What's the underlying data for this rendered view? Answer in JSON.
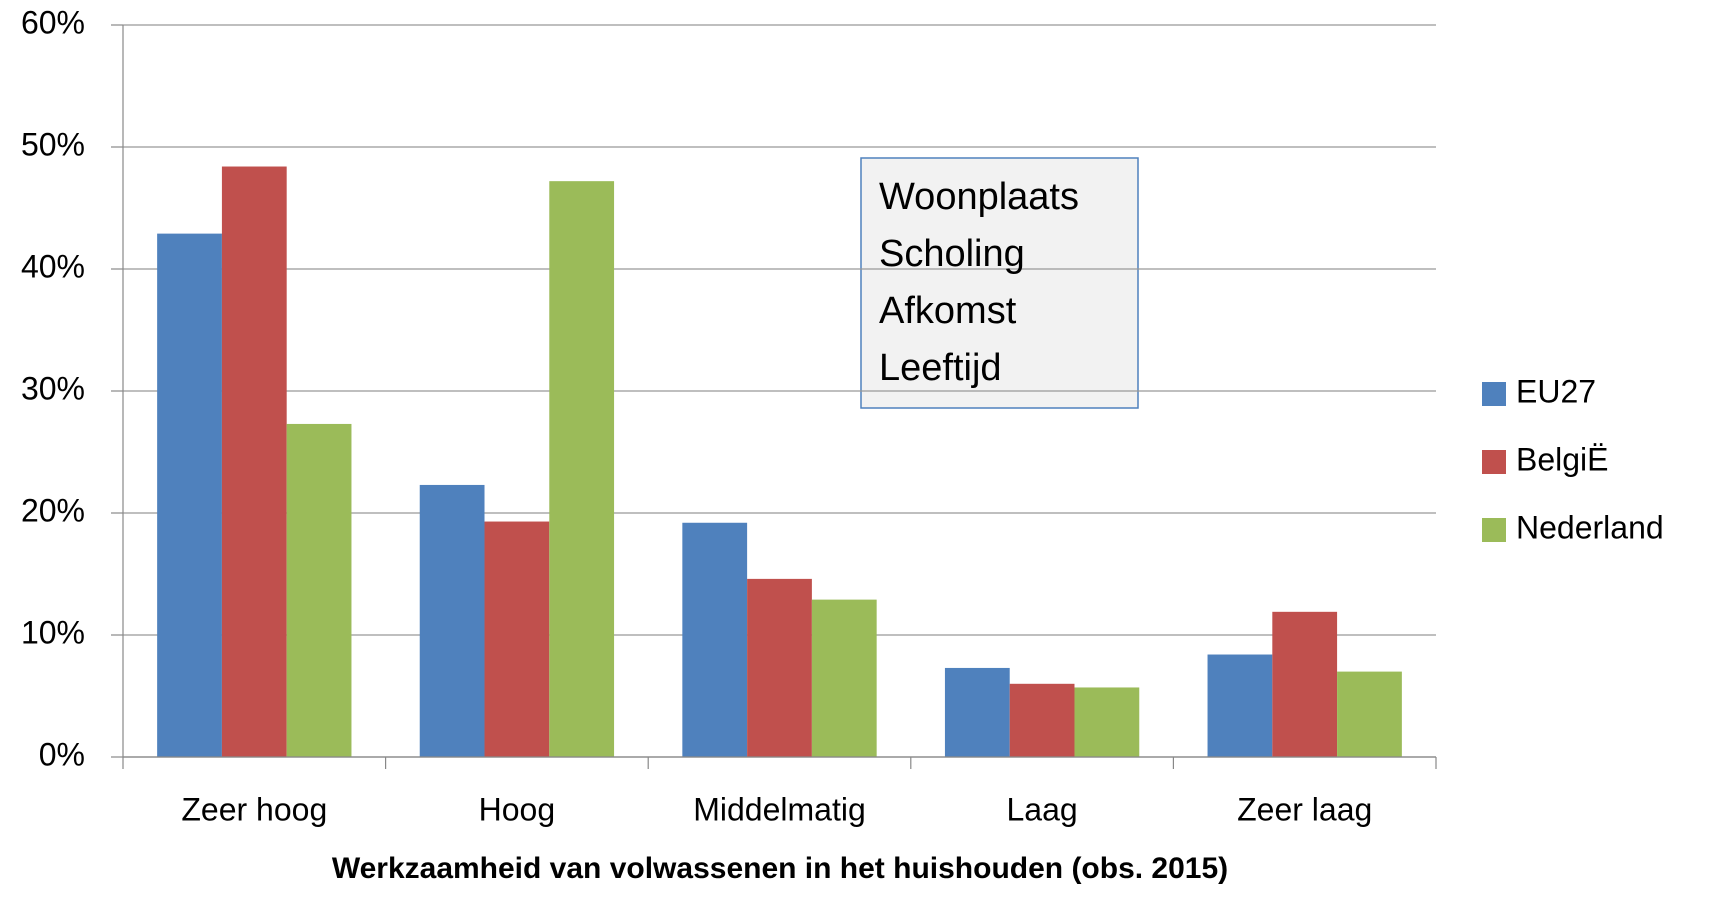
{
  "chart_data": {
    "type": "bar",
    "x_label": "Werkzaamheid van volwassenen in het huishouden (obs. 2015)",
    "annotation": [
      "Woonplaats",
      "Scholing",
      "Afkomst",
      "Leeftijd"
    ],
    "categories": [
      "Zeer hoog",
      "Hoog",
      "Middelmatig",
      "Laag",
      "Zeer laag"
    ],
    "series": [
      {
        "name": "EU27",
        "color": "#4f81bd",
        "values": [
          42.9,
          22.3,
          19.2,
          7.3,
          8.4
        ]
      },
      {
        "name": "BelgiË",
        "color": "#c0504d",
        "values": [
          48.4,
          19.3,
          14.6,
          6.0,
          11.9
        ]
      },
      {
        "name": "Nederland",
        "color": "#9bbb59",
        "values": [
          27.3,
          47.2,
          12.9,
          5.7,
          7.0
        ]
      }
    ],
    "ylim": [
      0,
      60
    ],
    "yticks": [
      {
        "value": 0,
        "label": "0%"
      },
      {
        "value": 10,
        "label": "10%"
      },
      {
        "value": 20,
        "label": "20%"
      },
      {
        "value": 30,
        "label": "30%"
      },
      {
        "value": 40,
        "label": "40%"
      },
      {
        "value": 50,
        "label": "50%"
      },
      {
        "value": 60,
        "label": "60%"
      }
    ],
    "grid": true,
    "legend": "right"
  }
}
